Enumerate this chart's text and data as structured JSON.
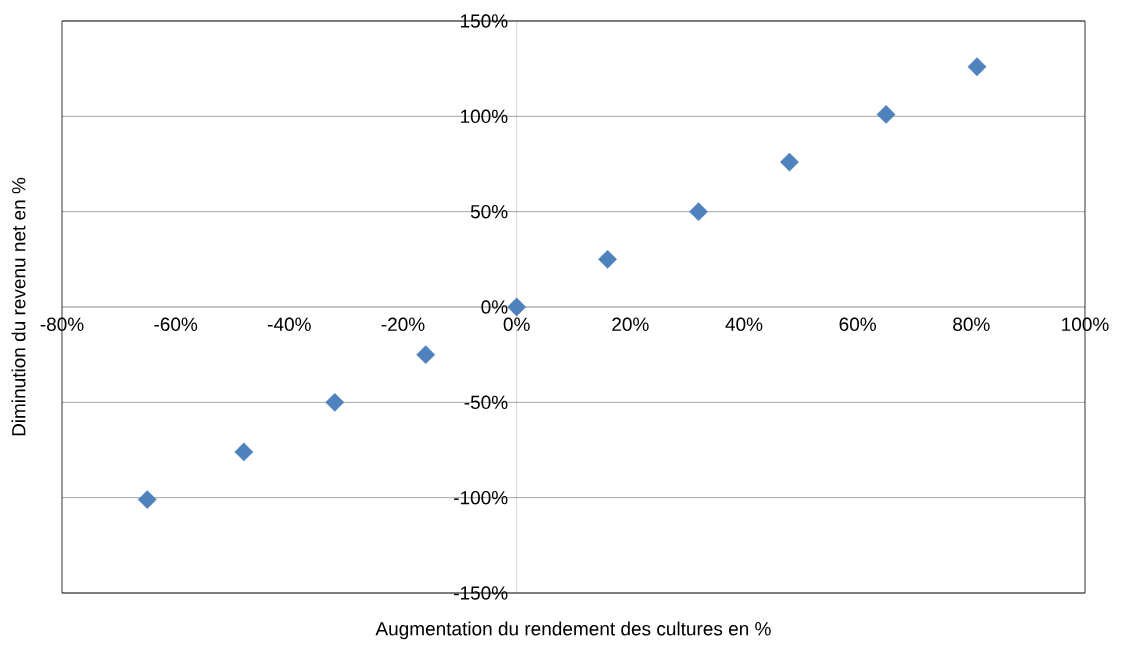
{
  "chart_data": {
    "type": "scatter",
    "xlabel": "Augmentation du rendement des cultures en %",
    "ylabel": "Diminution du revenu net en %",
    "x": [
      -65,
      -48,
      -32,
      -16,
      0,
      16,
      32,
      48,
      65,
      81
    ],
    "series": [
      {
        "color": "#4f81bd",
        "values": [
          -101,
          -76,
          -50,
          -25,
          0,
          25,
          50,
          76,
          101,
          126
        ]
      }
    ],
    "xlim": [
      -80,
      100
    ],
    "ylim": [
      -150,
      150
    ],
    "xticks": [
      {
        "value": -80,
        "label": "-80%"
      },
      {
        "value": -60,
        "label": "-60%"
      },
      {
        "value": -40,
        "label": "-40%"
      },
      {
        "value": -20,
        "label": "-20%"
      },
      {
        "value": 0,
        "label": "0%"
      },
      {
        "value": 20,
        "label": "20%"
      },
      {
        "value": 40,
        "label": "40%"
      },
      {
        "value": 60,
        "label": "60%"
      },
      {
        "value": 80,
        "label": "80%"
      },
      {
        "value": 100,
        "label": "100%"
      }
    ],
    "yticks": [
      {
        "value": -150,
        "label": "-150%"
      },
      {
        "value": -100,
        "label": "-100%"
      },
      {
        "value": -50,
        "label": "-50%"
      },
      {
        "value": 0,
        "label": "0%"
      },
      {
        "value": 50,
        "label": "50%"
      },
      {
        "value": 100,
        "label": "100%"
      },
      {
        "value": 150,
        "label": "150%"
      }
    ],
    "grid": "y",
    "marker": "diamond"
  }
}
